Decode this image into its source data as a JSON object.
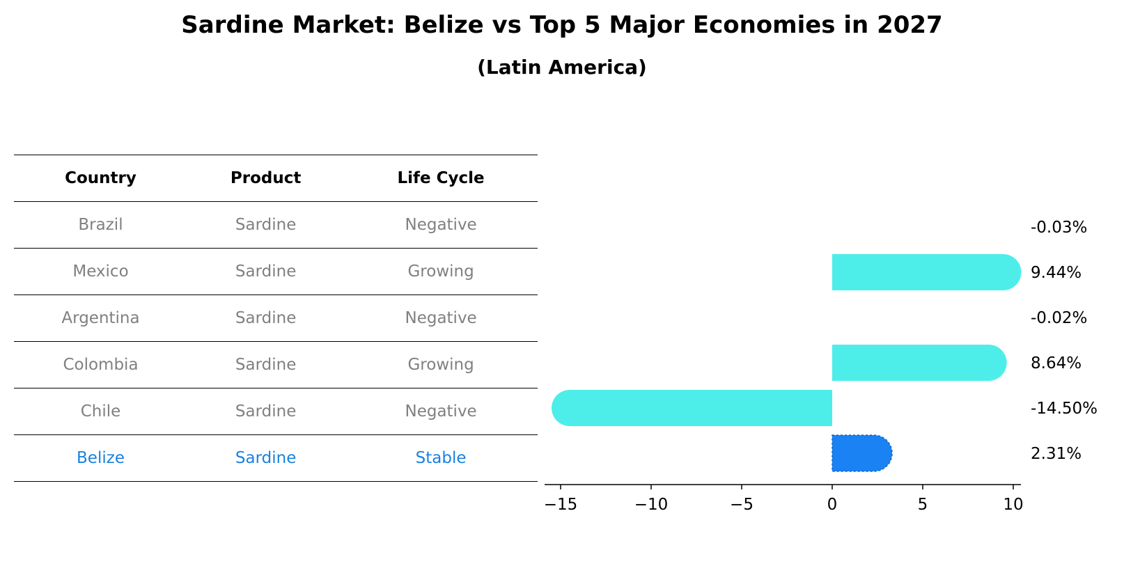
{
  "title": "Sardine Market: Belize vs Top 5 Major Economies in 2027",
  "subtitle": "(Latin America)",
  "table": {
    "headers": [
      "Country",
      "Product",
      "Life Cycle"
    ],
    "rows": [
      [
        "Brazil",
        "Sardine",
        "Negative"
      ],
      [
        "Mexico",
        "Sardine",
        "Growing"
      ],
      [
        "Argentina",
        "Sardine",
        "Negative"
      ],
      [
        "Colombia",
        "Sardine",
        "Growing"
      ],
      [
        "Chile",
        "Sardine",
        "Negative"
      ],
      [
        "Belize",
        "Sardine",
        "Stable"
      ]
    ],
    "highlight_row": 5
  },
  "colors": {
    "bar": "#4deeea",
    "highlight_bar": "#1a82f2",
    "highlight_text": "#1a82e0",
    "muted_text": "#808080"
  },
  "chart_data": {
    "type": "bar",
    "orientation": "horizontal",
    "title": "Sardine Market: Belize vs Top 5 Major Economies in 2027",
    "subtitle": "(Latin America)",
    "categories": [
      "Brazil",
      "Mexico",
      "Argentina",
      "Colombia",
      "Chile",
      "Belize"
    ],
    "values": [
      -0.03,
      9.44,
      -0.02,
      8.64,
      -14.5,
      2.31
    ],
    "value_labels": [
      "-0.03%",
      "9.44%",
      "-0.02%",
      "8.64%",
      "-14.50%",
      "2.31%"
    ],
    "highlight_index": 5,
    "xlim": [
      -15.5,
      10.5
    ],
    "xticks": [
      -15,
      -10,
      -5,
      0,
      5,
      10
    ],
    "xtick_labels": [
      "−15",
      "−10",
      "−5",
      "0",
      "5",
      "10"
    ],
    "xlabel": "",
    "ylabel": "",
    "grid": false
  }
}
